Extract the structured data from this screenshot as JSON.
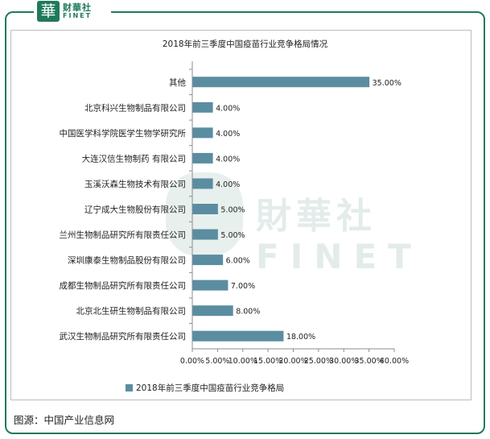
{
  "logo": {
    "mark": "華",
    "cn": "财華社",
    "en": "FINET"
  },
  "watermark": {
    "cn": "財華社",
    "en": "FINET"
  },
  "source": "图源：中国产业信息网",
  "colors": {
    "bar": "#5b8da1",
    "frame": "#1f7a5a",
    "grid": "#d9d9d9"
  },
  "chart_data": {
    "type": "bar",
    "orientation": "horizontal",
    "title": "2018年前三季度中国疫苗行业竞争格局情况",
    "categories": [
      "其他",
      "北京科兴生物制品有限公司",
      "中国医学科学院医学生物学研究所",
      "大连汉信生物制药 有限公司",
      "玉溪沃森生物技术有限公司",
      "辽宁成大生物股份有限公司",
      "兰州生物制品研究所有限责任公司",
      "深圳康泰生物制品股份有限公司",
      "成都生物制品研究所有限责任公司",
      "北京北生研生物制品有限公司",
      "武汉生物制品研究所有限责任公司"
    ],
    "series": [
      {
        "name": "2018年前三季度中国疫苗行业竞争格局",
        "values": [
          35,
          4,
          4,
          4,
          4,
          5,
          5,
          6,
          7,
          8,
          18
        ],
        "labels": [
          "35.00%",
          "4.00%",
          "4.00%",
          "4.00%",
          "4.00%",
          "5.00%",
          "5.00%",
          "6.00%",
          "7.00%",
          "8.00%",
          "18.00%"
        ]
      }
    ],
    "xlim": [
      0,
      40
    ],
    "xticks": [
      "0.00%",
      "5.00%",
      "10.00%",
      "15.00%",
      "20.00%",
      "25.00%",
      "30.00%",
      "35.00%",
      "40.00%"
    ],
    "legend": "bottom",
    "grid": false
  }
}
